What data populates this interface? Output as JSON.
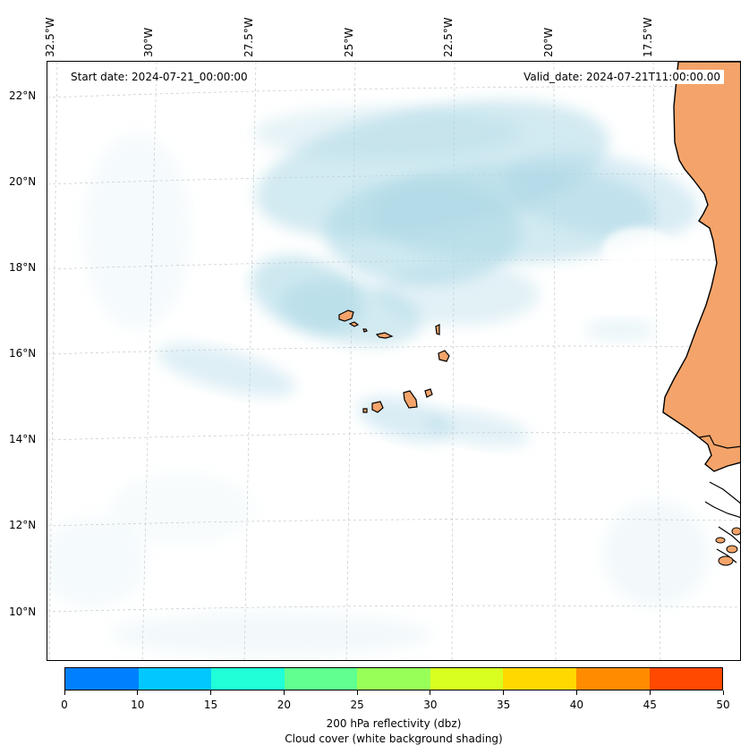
{
  "map": {
    "start_date_label": "Start date: 2024-07-21_00:00:00",
    "valid_date_label": "Valid_date: 2024-07-21T11:00:00.00",
    "lon_labels": [
      "32.5°W",
      "30°W",
      "27.5°W",
      "25°W",
      "22.5°W",
      "20°W",
      "17.5°W"
    ],
    "lat_labels": [
      "22°N",
      "20°N",
      "18°N",
      "16°N",
      "14°N",
      "12°N",
      "10°N"
    ],
    "gridlines": true,
    "land_color": "#f4a46a",
    "cloud_color": "#add8e6",
    "coast_color": "#000000"
  },
  "colorbar": {
    "colors": [
      "#0080ff",
      "#00c8ff",
      "#20ffd8",
      "#60ff90",
      "#98ff58",
      "#d8ff20",
      "#ffd800",
      "#ff8c00",
      "#ff4800"
    ],
    "tick_labels": [
      "0",
      "10",
      "15",
      "20",
      "25",
      "30",
      "35",
      "40",
      "45",
      "50"
    ],
    "label_line1": "200 hPa reflectivity (dbz)",
    "label_line2": "Cloud cover (white background shading)"
  }
}
